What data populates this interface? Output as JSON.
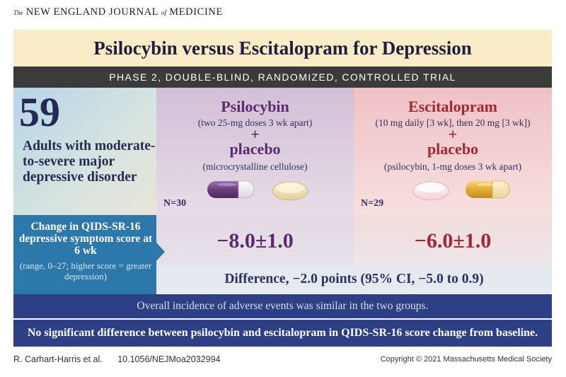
{
  "header": {
    "journal_prefix": "The",
    "journal_main": "NEW ENGLAND JOURNAL",
    "journal_of": "of",
    "journal_end": "MEDICINE"
  },
  "title": "Psilocybin versus Escitalopram for Depression",
  "subtitle": "PHASE 2, DOUBLE-BLIND, RANDOMIZED, CONTROLLED TRIAL",
  "population": {
    "count": "59",
    "description": "Adults with moderate-to-severe major depressive disorder"
  },
  "arms": {
    "psilocybin": {
      "name": "Psilocybin",
      "dose": "(two 25-mg doses 3 wk apart)",
      "plus": "+",
      "placebo": "placebo",
      "placebo_desc": "(microcrystalline cellulose)",
      "n": "N=30",
      "result": "−8.0±1.0"
    },
    "escitalopram": {
      "name": "Escitalopram",
      "dose": "(10 mg daily [3 wk], then 20 mg [3 wk])",
      "plus": "+",
      "placebo": "placebo",
      "placebo_desc": "(psilocybin, 1-mg doses 3 wk apart)",
      "n": "N=29",
      "result": "−6.0±1.0"
    }
  },
  "outcome": {
    "label": "Change in QIDS-SR-16 depressive symptom score at 6 wk",
    "range": "(range, 0–27; higher score = greater depression)"
  },
  "difference": "Difference, −2.0 points (95% CI, −5.0 to 0.9)",
  "adverse_events": "Overall incidence of adverse events was similar in the two groups.",
  "conclusion": "No significant difference between psilocybin and escitalopram in QIDS-SR-16 score change from baseline.",
  "footer": {
    "authors": "R. Carhart-Harris et al.",
    "doi": "10.1056/NEJMoa2032994",
    "copyright": "Copyright © 2021 Massachusetts Medical Society"
  },
  "colors": {
    "psilocybin": "#5c2a6e",
    "escitalopram": "#a8262f",
    "navy_bar": "#2d3f85",
    "outcome_blue": "#2d78ab",
    "title_cream": "#f9ecc7"
  },
  "icons": [
    "purple-white-capsule-icon",
    "cream-tablet-icon",
    "white-pink-tablet-icon",
    "yellow-capsule-icon"
  ]
}
